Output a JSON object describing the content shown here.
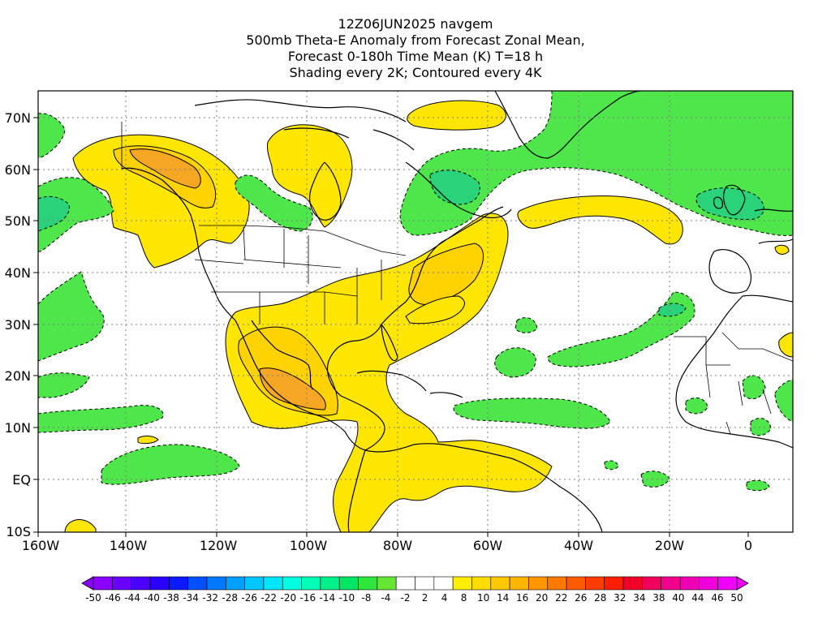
{
  "titles": {
    "line1": "12Z06JUN2025 navgem",
    "line2": "500mb Theta-E Anomaly from Forecast Zonal Mean,",
    "line3": "Forecast 0-180h Time Mean (K) T=18 h",
    "line4": "Shading every 2K; Contoured every 4K"
  },
  "axes": {
    "lat_labels": [
      "70N",
      "60N",
      "50N",
      "40N",
      "30N",
      "20N",
      "10N",
      "EQ",
      "10S"
    ],
    "lon_labels": [
      "160W",
      "140W",
      "120W",
      "100W",
      "80W",
      "60W",
      "40W",
      "20W",
      "0"
    ],
    "lon_range": [
      -160,
      5
    ],
    "lat_range": [
      -10,
      75
    ]
  },
  "colorbar": {
    "labels": [
      "-50",
      "-46",
      "-44",
      "-40",
      "-38",
      "-34",
      "-32",
      "-28",
      "-26",
      "-22",
      "-20",
      "-16",
      "-14",
      "-10",
      "-8",
      "-4",
      "-2",
      "2",
      "4",
      "8",
      "10",
      "14",
      "16",
      "20",
      "22",
      "26",
      "28",
      "32",
      "34",
      "38",
      "40",
      "44",
      "46",
      "50"
    ],
    "colors": [
      "#8a00ff",
      "#6a00ff",
      "#4b00ff",
      "#2a00ff",
      "#0b1aff",
      "#0050ff",
      "#0078ff",
      "#00a0ff",
      "#00c8ff",
      "#00e6ff",
      "#00ffe0",
      "#00ffb4",
      "#00f08a",
      "#00e664",
      "#2ee63c",
      "#64e632",
      "#ffffff",
      "#ffffff",
      "#ffffff",
      "#ffee00",
      "#ffdc00",
      "#ffc800",
      "#ffb400",
      "#ff9600",
      "#ff7800",
      "#ff5a00",
      "#ff3c00",
      "#ff1e00",
      "#f00028",
      "#f0005a",
      "#f0008c",
      "#f000b4",
      "#f000dc",
      "#f000ff"
    ]
  },
  "field_colors": {
    "anom_pos_4_8": "#ffe600",
    "anom_pos_8_12": "#ffd200",
    "anom_pos_12_16": "#f5a623",
    "anom_neg_4_8": "#4ee64a",
    "anom_neg_8_12": "#2ad27a",
    "land_outline": "#000000"
  }
}
